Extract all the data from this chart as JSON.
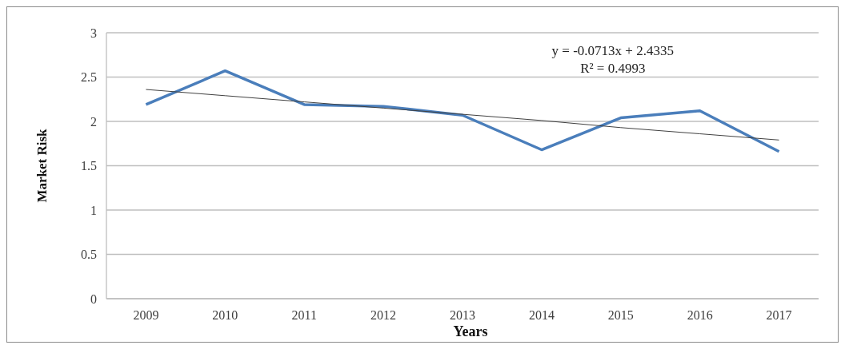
{
  "chart_data": {
    "type": "line",
    "xlabel": "Years",
    "ylabel": "Market Risk",
    "categories": [
      "2009",
      "2010",
      "2011",
      "2012",
      "2013",
      "2014",
      "2015",
      "2016",
      "2017"
    ],
    "series": [
      {
        "color": "#4a7ebb",
        "values": [
          2.19,
          2.57,
          2.19,
          2.17,
          2.07,
          1.68,
          2.04,
          2.12,
          1.66
        ]
      },
      {
        "color": "#404040",
        "values": [
          2.36,
          2.29,
          2.22,
          2.15,
          2.08,
          2.01,
          1.93,
          1.86,
          1.79
        ]
      }
    ],
    "ylim": [
      0,
      3
    ],
    "yticks": [
      0,
      0.5,
      1,
      1.5,
      2,
      2.5,
      3
    ],
    "grid": "y",
    "marker": "none",
    "annotations": [
      "y = -0.0713x + 2.4335",
      "R² = 0.4993"
    ]
  }
}
